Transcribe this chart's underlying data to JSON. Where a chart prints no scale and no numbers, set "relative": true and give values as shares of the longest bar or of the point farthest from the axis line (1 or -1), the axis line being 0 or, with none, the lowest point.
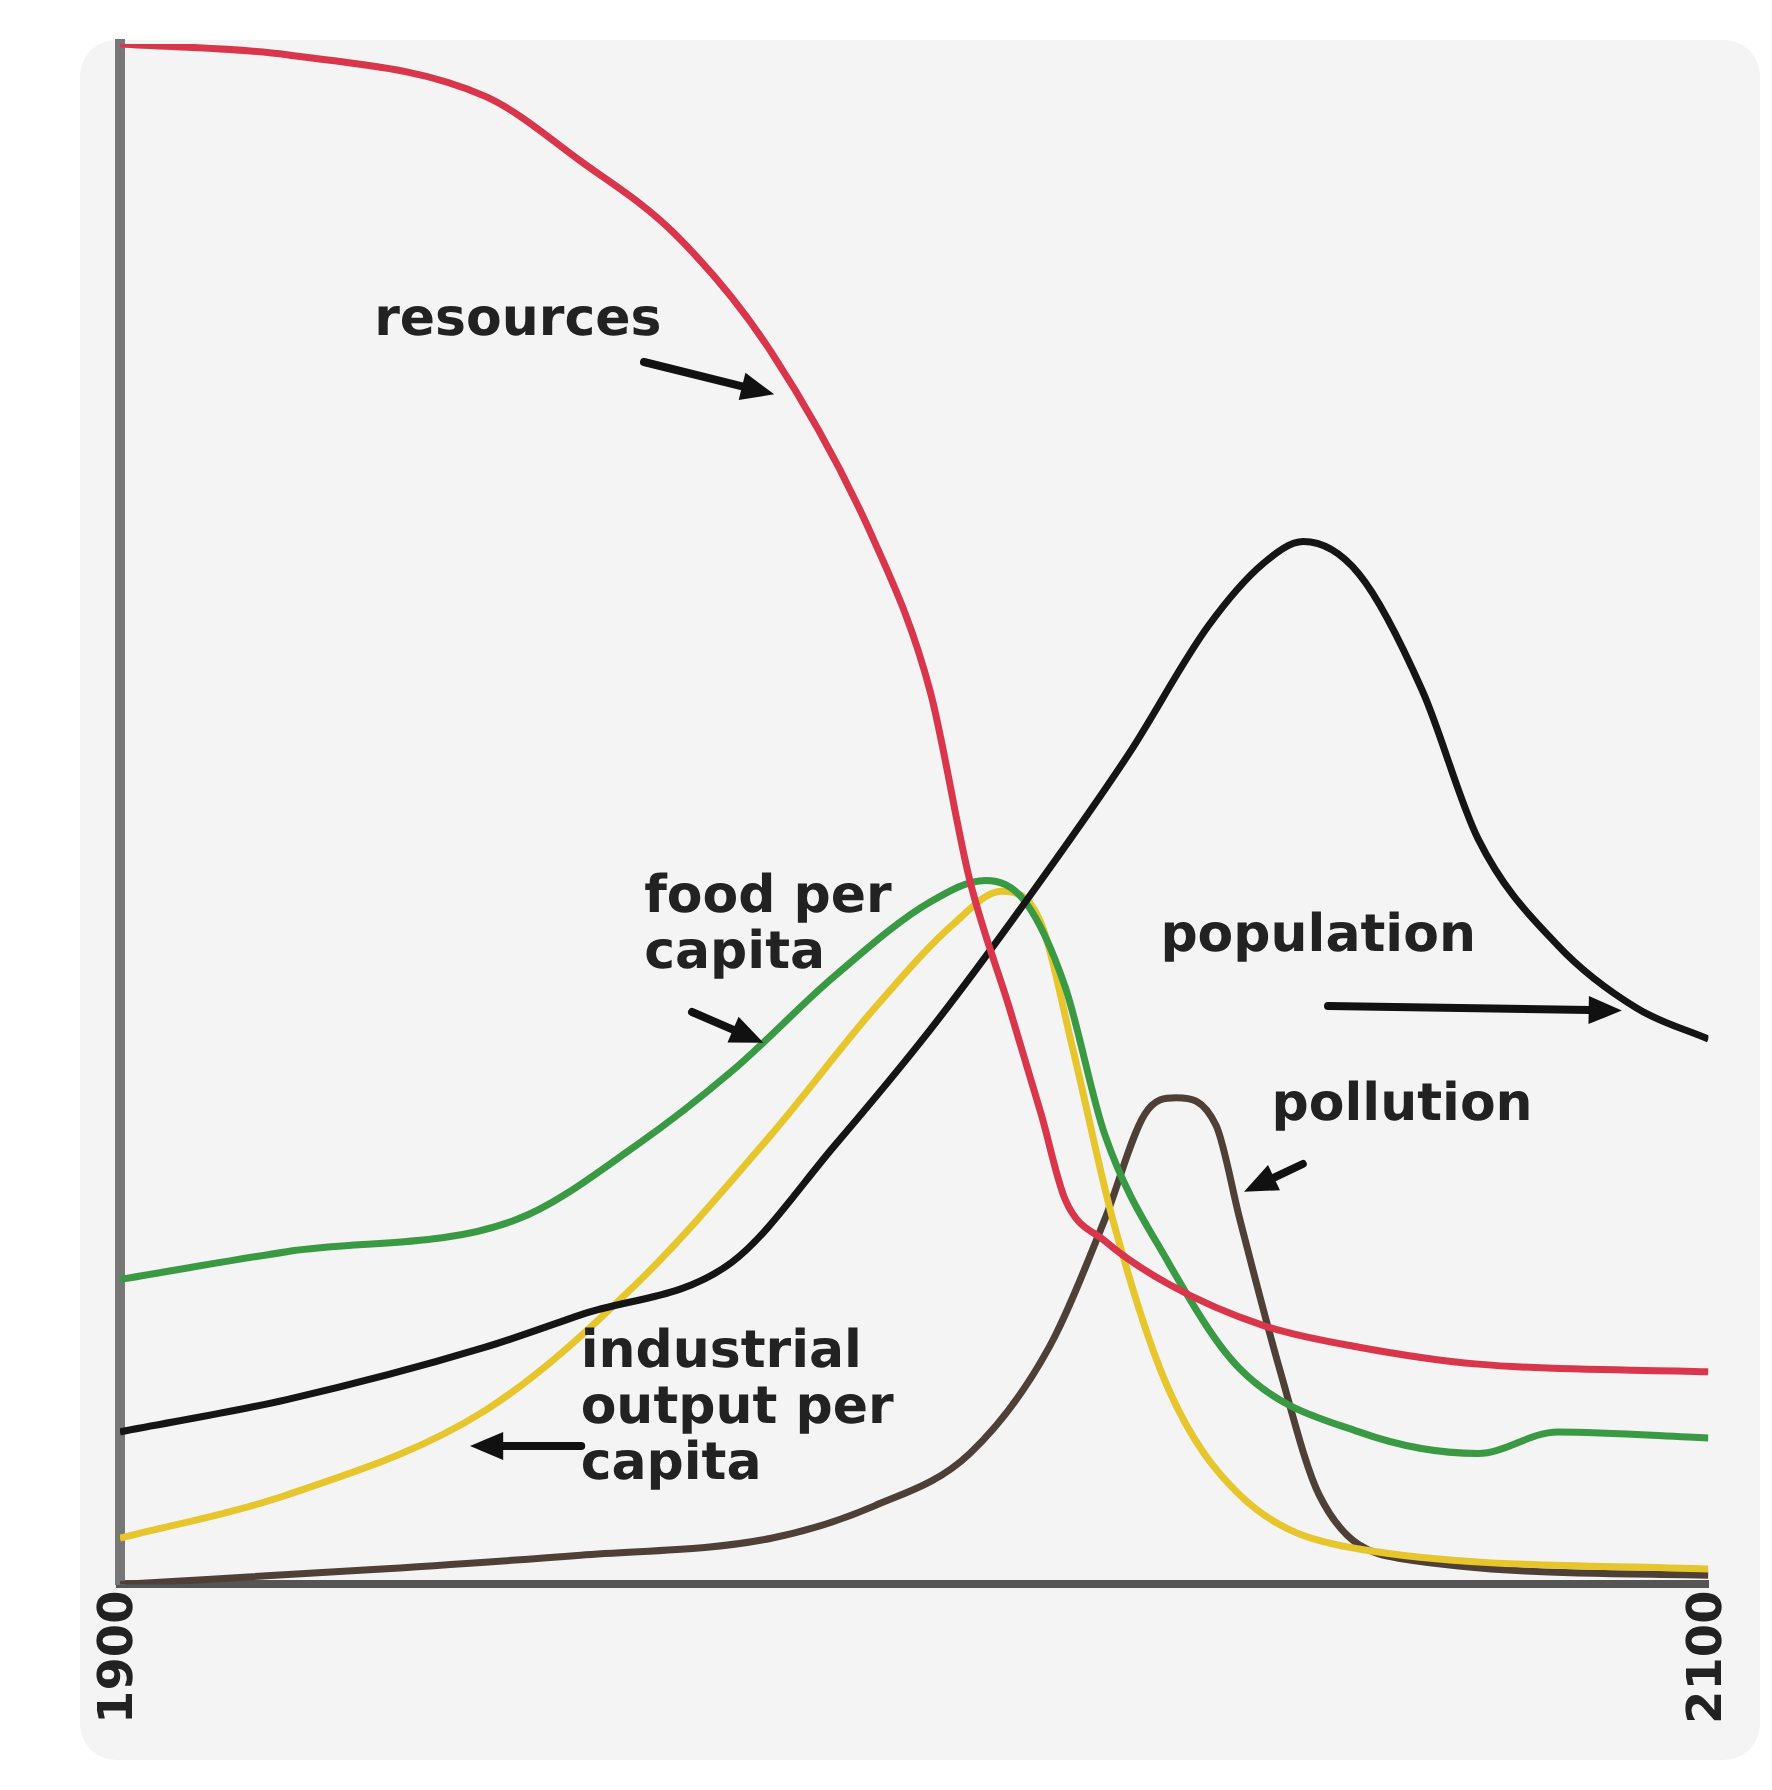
{
  "chart_data": {
    "type": "line",
    "relative": true,
    "xlim": [
      1900,
      2100
    ],
    "xticks": [
      1900,
      2100
    ],
    "legend": false,
    "grid": false,
    "marker": "none",
    "line_style": "solid",
    "series": [
      {
        "name": "resources",
        "color": "#d9364c",
        "x": [
          1900,
          1921,
          1946,
          1958,
          1970,
          1982,
          1995,
          2002,
          2007,
          2012,
          2016,
          2019,
          2024,
          2032,
          2044,
          2056,
          2071,
          2100
        ],
        "values": [
          1,
          0.993,
          0.966,
          0.924,
          0.876,
          0.8,
          0.677,
          0.58,
          0.457,
          0.374,
          0.305,
          0.25,
          0.223,
          0.195,
          0.168,
          0.154,
          0.143,
          0.138
        ]
      },
      {
        "name": "population",
        "color": "#151515",
        "x": [
          1900,
          1921,
          1946,
          1958,
          1977,
          1990,
          2002,
          2014,
          2027,
          2037,
          2044,
          2049,
          2056,
          2064,
          2071,
          2081,
          2091,
          2100
        ],
        "values": [
          0.099,
          0.12,
          0.154,
          0.175,
          0.209,
          0.285,
          0.36,
          0.443,
          0.539,
          0.622,
          0.663,
          0.677,
          0.656,
          0.58,
          0.484,
          0.415,
          0.374,
          0.354
        ]
      },
      {
        "name": "food per capita",
        "color": "#3a9a44",
        "x": [
          1900,
          1921,
          1950,
          1965,
          1977,
          1990,
          2002,
          2009,
          2014,
          2019,
          2024,
          2032,
          2041,
          2056,
          2071,
          2081,
          2100
        ],
        "values": [
          0.198,
          0.216,
          0.237,
          0.285,
          0.333,
          0.395,
          0.443,
          0.457,
          0.443,
          0.388,
          0.292,
          0.209,
          0.14,
          0.099,
          0.085,
          0.099,
          0.095
        ]
      },
      {
        "name": "industrial output per capita",
        "color": "#e6c62c",
        "x": [
          1900,
          1921,
          1946,
          1965,
          1982,
          1995,
          2005,
          2011,
          2016,
          2020,
          2025,
          2032,
          2041,
          2056,
          2100
        ],
        "values": [
          0.03,
          0.058,
          0.113,
          0.195,
          0.292,
          0.374,
          0.429,
          0.45,
          0.429,
          0.347,
          0.237,
          0.127,
          0.058,
          0.023,
          0.01
        ]
      },
      {
        "name": "pollution",
        "color": "#4e4036",
        "x": [
          1900,
          1933,
          1958,
          1982,
          1995,
          2007,
          2017,
          2024,
          2029,
          2033,
          2038,
          2041,
          2046,
          2051,
          2061,
          2100
        ],
        "values": [
          0,
          0.01,
          0.019,
          0.03,
          0.051,
          0.085,
          0.154,
          0.237,
          0.305,
          0.316,
          0.298,
          0.237,
          0.14,
          0.058,
          0.017,
          0.006
        ]
      }
    ]
  }
}
